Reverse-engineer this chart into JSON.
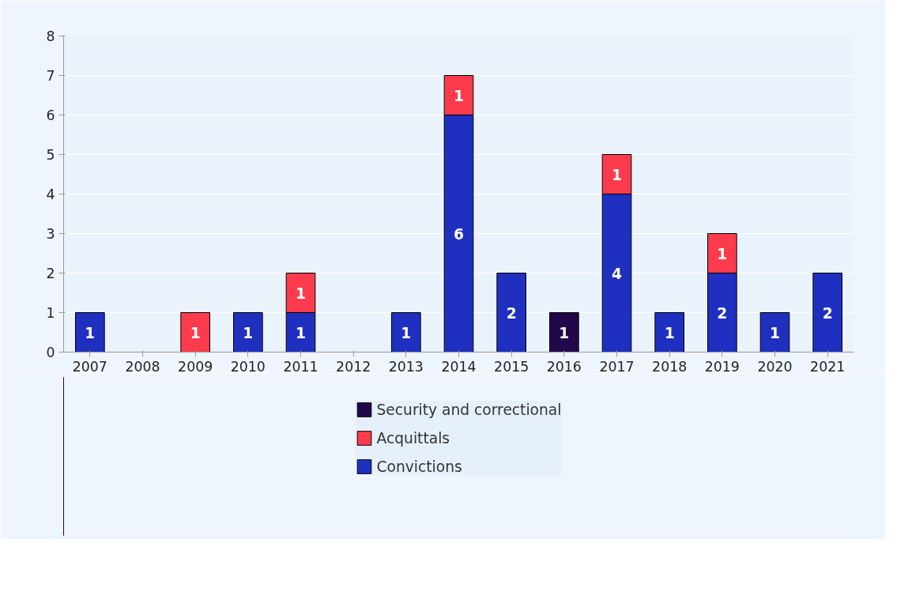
{
  "chart_data": {
    "type": "bar",
    "stacked": true,
    "categories": [
      "2007",
      "2008",
      "2009",
      "2010",
      "2011",
      "2012",
      "2013",
      "2014",
      "2015",
      "2016",
      "2017",
      "2018",
      "2019",
      "2020",
      "2021"
    ],
    "series": [
      {
        "name": "Convictions",
        "color": "#1f2fbf",
        "values": [
          1,
          null,
          null,
          1,
          1,
          null,
          1,
          6,
          2,
          null,
          4,
          1,
          2,
          1,
          2
        ]
      },
      {
        "name": "Acquittals",
        "color": "#fc3c4c",
        "values": [
          null,
          null,
          1,
          null,
          1,
          null,
          null,
          1,
          null,
          null,
          1,
          null,
          1,
          null,
          null
        ]
      },
      {
        "name": "Security and correctional",
        "color": "#22084a",
        "values": [
          null,
          null,
          null,
          null,
          null,
          null,
          null,
          null,
          null,
          1,
          null,
          null,
          null,
          null,
          null
        ]
      }
    ],
    "ylim": [
      0,
      8
    ],
    "yticks": [
      0,
      1,
      2,
      3,
      4,
      5,
      6,
      7,
      8
    ],
    "grid": "y",
    "legend": "bottom",
    "data_labels": true
  }
}
